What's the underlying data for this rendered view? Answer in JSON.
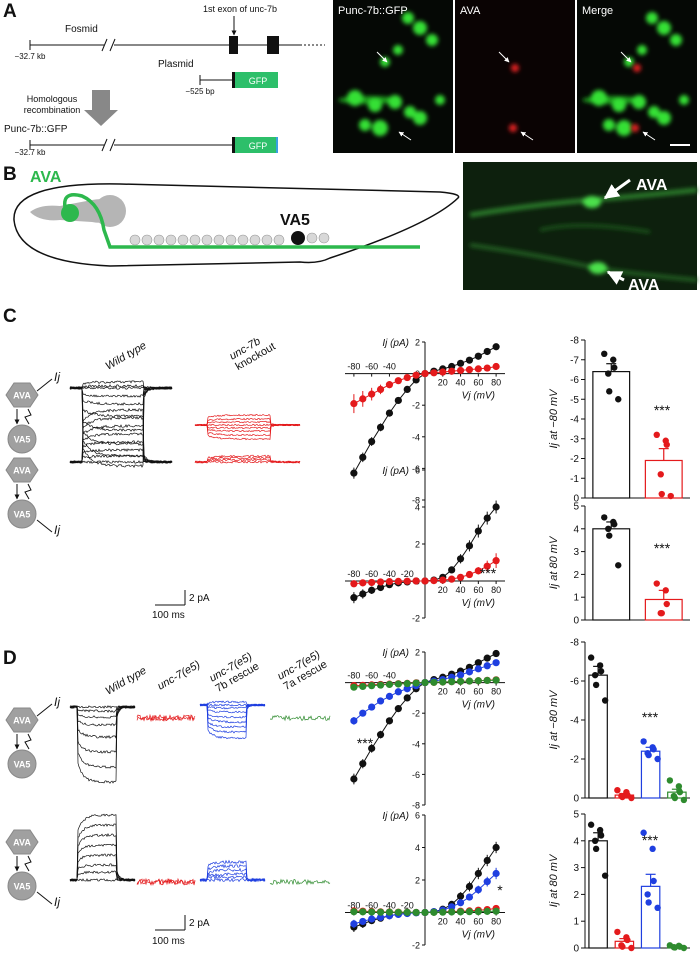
{
  "panel_a": {
    "label": "A",
    "fosmid": "Fosmid",
    "exon_label": "1st exon of unc-7b",
    "fosmid_start": "−32.7 kb",
    "plasmid": "Plasmid",
    "plasmid_start": "−525 bp",
    "plasmid_gfp": "GFP",
    "recombination": [
      "Homologous",
      "recombination"
    ],
    "product": "Punc-7b::GFP",
    "product_start": "−32.7 kb",
    "product_gfp": "GFP",
    "images": [
      "Punc-7b::GFP",
      "AVA",
      "Merge"
    ]
  },
  "panel_b": {
    "label": "B",
    "neuron_1": "AVA",
    "neuron_2": "VA5",
    "image_labels": [
      "AVA",
      "AVA"
    ]
  },
  "panel_c": {
    "label": "C",
    "conditions": [
      [
        "Wild type"
      ],
      [
        "unc-7b",
        "knockout"
      ]
    ],
    "circuits": [
      {
        "pre": "AVA",
        "post": "VA5",
        "current": "Ij"
      },
      {
        "pre": "AVA",
        "post": "VA5",
        "current": "Ij"
      }
    ],
    "scale_current": "2 pA",
    "scale_time": "100 ms"
  },
  "panel_d": {
    "label": "D",
    "conditions": [
      [
        "Wild type"
      ],
      [
        "unc-7(e5)"
      ],
      [
        "unc-7(e5)",
        "7b rescue"
      ],
      [
        "unc-7(e5)",
        "7a rescue"
      ]
    ],
    "circuits": [
      {
        "pre": "AVA",
        "post": "VA5",
        "current": "Ij"
      },
      {
        "pre": "AVA",
        "post": "VA5",
        "current": "Ij"
      }
    ],
    "scale_current": "2 pA",
    "scale_time": "100 ms"
  },
  "chart_data": [
    {
      "type": "line",
      "ylabel": "Ij (pA)",
      "xlabel": "Vj (mV)",
      "xlim": [
        -90,
        90
      ],
      "ylim": [
        -8,
        2
      ],
      "xticks": [
        -80,
        -60,
        -40,
        20,
        40,
        60,
        80
      ],
      "yticks": [
        -8,
        -6,
        -4,
        -2,
        0,
        2
      ],
      "x": [
        -80,
        -70,
        -60,
        -50,
        -40,
        -30,
        -20,
        -10,
        0,
        10,
        20,
        30,
        40,
        50,
        60,
        70,
        80
      ],
      "series": [
        {
          "color": "#111111",
          "values": [
            -6.3,
            -5.3,
            -4.3,
            -3.4,
            -2.5,
            -1.7,
            -1.0,
            -0.4,
            0,
            0.15,
            0.3,
            0.45,
            0.65,
            0.85,
            1.1,
            1.4,
            1.7
          ],
          "errors": [
            0.35,
            0.3,
            0.28,
            0.25,
            0.2,
            0.15,
            0.1,
            0.05,
            0,
            0.03,
            0.05,
            0.06,
            0.08,
            0.1,
            0.12,
            0.15,
            0.18
          ]
        },
        {
          "color": "#e41a1c",
          "values": [
            -1.9,
            -1.6,
            -1.3,
            -1.0,
            -0.7,
            -0.45,
            -0.25,
            -0.1,
            0,
            0.05,
            0.1,
            0.15,
            0.2,
            0.25,
            0.3,
            0.35,
            0.45
          ],
          "errors": [
            0.6,
            0.5,
            0.4,
            0.3,
            0.22,
            0.15,
            0.1,
            0.05,
            0,
            0.02,
            0.03,
            0.04,
            0.05,
            0.06,
            0.07,
            0.08,
            0.1
          ]
        }
      ]
    },
    {
      "type": "line",
      "ylabel": "Ij (pA)",
      "xlabel": "Vj (mV)",
      "annotation": "***",
      "xlim": [
        -90,
        90
      ],
      "ylim": [
        -2,
        6
      ],
      "xticks": [
        -80,
        -60,
        -40,
        -20,
        20,
        40,
        60,
        80
      ],
      "yticks": [
        -2,
        0,
        2,
        4,
        6
      ],
      "x": [
        -80,
        -70,
        -60,
        -50,
        -40,
        -30,
        -20,
        -10,
        0,
        10,
        20,
        30,
        40,
        50,
        60,
        70,
        80
      ],
      "series": [
        {
          "color": "#111111",
          "values": [
            -0.9,
            -0.7,
            -0.5,
            -0.35,
            -0.2,
            -0.1,
            -0.05,
            0,
            0,
            0.05,
            0.2,
            0.6,
            1.2,
            1.9,
            2.7,
            3.4,
            4.0
          ],
          "errors": [
            0.3,
            0.25,
            0.2,
            0.15,
            0.1,
            0.06,
            0.04,
            0.02,
            0,
            0.03,
            0.08,
            0.15,
            0.25,
            0.3,
            0.35,
            0.35,
            0.35
          ]
        },
        {
          "color": "#e41a1c",
          "values": [
            -0.15,
            -0.1,
            -0.08,
            -0.05,
            -0.03,
            -0.02,
            -0.01,
            0,
            0,
            0.02,
            0.05,
            0.1,
            0.2,
            0.35,
            0.55,
            0.8,
            1.1
          ],
          "errors": [
            0.1,
            0.08,
            0.06,
            0.05,
            0.04,
            0.03,
            0.02,
            0.01,
            0,
            0.02,
            0.04,
            0.06,
            0.1,
            0.15,
            0.2,
            0.3,
            0.4
          ]
        }
      ]
    },
    {
      "type": "bar",
      "ylabel": "Ij at −80 mV",
      "annotation": "***",
      "ylim": [
        0,
        -8
      ],
      "yticks": [
        -8,
        -7,
        -6,
        -5,
        -4,
        -3,
        -2,
        -1,
        0
      ],
      "categories": [
        null,
        null
      ],
      "colors": [
        "#111111",
        "#e41a1c"
      ],
      "values": [
        -6.4,
        -1.9
      ],
      "errors": [
        0.4,
        0.6
      ],
      "points": [
        [
          -7.3,
          -7.0,
          -6.6,
          -6.3,
          -5.4,
          -5.0
        ],
        [
          -3.2,
          -2.9,
          -2.7,
          -1.2,
          -0.2,
          -0.1
        ]
      ]
    },
    {
      "type": "bar",
      "ylabel": "Ij at 80 mV",
      "annotation": "***",
      "ylim": [
        0,
        5
      ],
      "yticks": [
        0,
        1,
        2,
        3,
        4,
        5
      ],
      "categories": [
        null,
        null
      ],
      "colors": [
        "#111111",
        "#e41a1c"
      ],
      "values": [
        4.0,
        0.9
      ],
      "errors": [
        0.3,
        0.4
      ],
      "points": [
        [
          4.5,
          4.3,
          4.2,
          4.0,
          3.7,
          2.4
        ],
        [
          1.6,
          1.3,
          0.7,
          0.3,
          0.3
        ]
      ]
    },
    {
      "type": "line",
      "ylabel": "Ij (pA)",
      "xlabel": "Vj (mV)",
      "annotation": "***",
      "xlim": [
        -90,
        90
      ],
      "ylim": [
        -8,
        2
      ],
      "xticks": [
        -80,
        -60,
        -40,
        20,
        40,
        60,
        80
      ],
      "yticks": [
        -8,
        -6,
        -4,
        -2,
        0,
        2
      ],
      "x": [
        -80,
        -70,
        -60,
        -50,
        -40,
        -30,
        -20,
        -10,
        0,
        10,
        20,
        30,
        40,
        50,
        60,
        70,
        80
      ],
      "series": [
        {
          "color": "#111111",
          "values": [
            -6.3,
            -5.3,
            -4.3,
            -3.4,
            -2.5,
            -1.7,
            -1.0,
            -0.4,
            0,
            0.2,
            0.35,
            0.55,
            0.75,
            1.0,
            1.3,
            1.6,
            1.9
          ],
          "errors": [
            0.35,
            0.3,
            0.28,
            0.25,
            0.2,
            0.15,
            0.1,
            0.05,
            0,
            0.03,
            0.05,
            0.06,
            0.08,
            0.1,
            0.12,
            0.15,
            0.18
          ]
        },
        {
          "color": "#e41a1c",
          "values": [
            -0.2,
            -0.18,
            -0.15,
            -0.12,
            -0.1,
            -0.07,
            -0.05,
            -0.02,
            0,
            0.02,
            0.04,
            0.06,
            0.08,
            0.1,
            0.12,
            0.15,
            0.18
          ],
          "errors": [
            0.1,
            0.08,
            0.07,
            0.06,
            0.05,
            0.04,
            0.03,
            0.02,
            0,
            0.02,
            0.03,
            0.03,
            0.04,
            0.05,
            0.05,
            0.06,
            0.07
          ]
        },
        {
          "color": "#1f3fe0",
          "values": [
            -2.5,
            -2.0,
            -1.6,
            -1.2,
            -0.9,
            -0.6,
            -0.4,
            -0.2,
            0,
            0.1,
            0.2,
            0.35,
            0.5,
            0.7,
            0.9,
            1.1,
            1.3
          ],
          "errors": [
            0.25,
            0.2,
            0.18,
            0.15,
            0.12,
            0.1,
            0.06,
            0.04,
            0,
            0.03,
            0.05,
            0.06,
            0.08,
            0.1,
            0.12,
            0.14,
            0.16
          ]
        },
        {
          "color": "#2e8b2e",
          "values": [
            -0.3,
            -0.25,
            -0.2,
            -0.16,
            -0.12,
            -0.09,
            -0.06,
            -0.03,
            0,
            0.02,
            0.04,
            0.06,
            0.08,
            0.1,
            0.12,
            0.14,
            0.16
          ],
          "errors": [
            0.12,
            0.1,
            0.08,
            0.07,
            0.06,
            0.05,
            0.04,
            0.02,
            0,
            0.02,
            0.03,
            0.03,
            0.04,
            0.05,
            0.05,
            0.06,
            0.07
          ]
        }
      ]
    },
    {
      "type": "line",
      "ylabel": "Ij (pA)",
      "xlabel": "Vj (mV)",
      "annotation": "*",
      "xlim": [
        -90,
        90
      ],
      "ylim": [
        -2,
        6
      ],
      "xticks": [
        -80,
        -60,
        -40,
        -20,
        20,
        40,
        60,
        80
      ],
      "yticks": [
        -2,
        0,
        2,
        4,
        6
      ],
      "x": [
        -80,
        -70,
        -60,
        -50,
        -40,
        -30,
        -20,
        -10,
        0,
        10,
        20,
        30,
        40,
        50,
        60,
        70,
        80
      ],
      "series": [
        {
          "color": "#111111",
          "values": [
            -0.9,
            -0.7,
            -0.5,
            -0.35,
            -0.2,
            -0.1,
            -0.05,
            0,
            0,
            0.05,
            0.2,
            0.5,
            1.0,
            1.6,
            2.4,
            3.2,
            4.0
          ],
          "errors": [
            0.3,
            0.25,
            0.2,
            0.15,
            0.1,
            0.06,
            0.04,
            0.02,
            0,
            0.03,
            0.08,
            0.15,
            0.25,
            0.3,
            0.35,
            0.35,
            0.35
          ]
        },
        {
          "color": "#e41a1c",
          "values": [
            0.1,
            0.08,
            0.06,
            0.04,
            0.03,
            0.02,
            0.01,
            0,
            0,
            0.02,
            0.04,
            0.06,
            0.08,
            0.1,
            0.14,
            0.18,
            0.25
          ],
          "errors": [
            0.05,
            0.04,
            0.04,
            0.03,
            0.03,
            0.02,
            0.02,
            0.01,
            0,
            0.02,
            0.02,
            0.03,
            0.03,
            0.04,
            0.05,
            0.06,
            0.08
          ]
        },
        {
          "color": "#1f3fe0",
          "values": [
            -0.7,
            -0.55,
            -0.4,
            -0.3,
            -0.2,
            -0.12,
            -0.06,
            -0.02,
            0,
            0.05,
            0.15,
            0.35,
            0.6,
            0.95,
            1.4,
            1.9,
            2.4
          ],
          "errors": [
            0.25,
            0.2,
            0.15,
            0.12,
            0.1,
            0.06,
            0.04,
            0.02,
            0,
            0.03,
            0.06,
            0.1,
            0.15,
            0.2,
            0.25,
            0.3,
            0.35
          ]
        },
        {
          "color": "#2e8b2e",
          "values": [
            0.05,
            0.04,
            0.03,
            0.02,
            0.02,
            0.01,
            0.01,
            0,
            0,
            0.01,
            0.02,
            0.03,
            0.04,
            0.05,
            0.06,
            0.07,
            0.08
          ],
          "errors": [
            0.03,
            0.03,
            0.02,
            0.02,
            0.02,
            0.01,
            0.01,
            0.01,
            0,
            0.01,
            0.01,
            0.02,
            0.02,
            0.02,
            0.03,
            0.03,
            0.03
          ]
        }
      ]
    },
    {
      "type": "bar",
      "ylabel": "Ij at −80 mV",
      "annotation": "***",
      "ylim": [
        0,
        -8
      ],
      "yticks": [
        -8,
        -6,
        -4,
        -2,
        0
      ],
      "categories": [
        null,
        null,
        null,
        null
      ],
      "colors": [
        "#111111",
        "#e41a1c",
        "#1f3fe0",
        "#2e8b2e"
      ],
      "values": [
        -6.3,
        -0.15,
        -2.4,
        -0.3
      ],
      "errors": [
        0.45,
        0.08,
        0.2,
        0.15
      ],
      "points": [
        [
          -7.2,
          -6.8,
          -6.5,
          -6.3,
          -5.8,
          -5.0
        ],
        [
          -0.4,
          -0.3,
          -0.15,
          -0.1,
          -0.05,
          0.0
        ],
        [
          -2.9,
          -2.6,
          -2.5,
          -2.3,
          -2.2,
          -2.0
        ],
        [
          -0.9,
          -0.6,
          -0.3,
          -0.1,
          0.0,
          0.1
        ]
      ]
    },
    {
      "type": "bar",
      "ylabel": "Ij at 80 mV",
      "annotation": "***",
      "ylim": [
        0,
        5
      ],
      "yticks": [
        0,
        1,
        2,
        3,
        4,
        5
      ],
      "categories": [
        null,
        null,
        null,
        null
      ],
      "colors": [
        "#111111",
        "#e41a1c",
        "#1f3fe0",
        "#2e8b2e"
      ],
      "values": [
        4.0,
        0.25,
        2.3,
        0.05
      ],
      "errors": [
        0.3,
        0.1,
        0.45,
        0.03
      ],
      "points": [
        [
          4.6,
          4.4,
          4.2,
          4.0,
          3.7,
          2.7
        ],
        [
          0.6,
          0.4,
          0.3,
          0.1,
          0.05,
          0.0
        ],
        [
          4.3,
          3.7,
          2.5,
          2.0,
          1.7,
          1.5
        ],
        [
          0.1,
          0.08,
          0.05,
          0.03,
          0.02,
          0.0
        ]
      ]
    }
  ]
}
